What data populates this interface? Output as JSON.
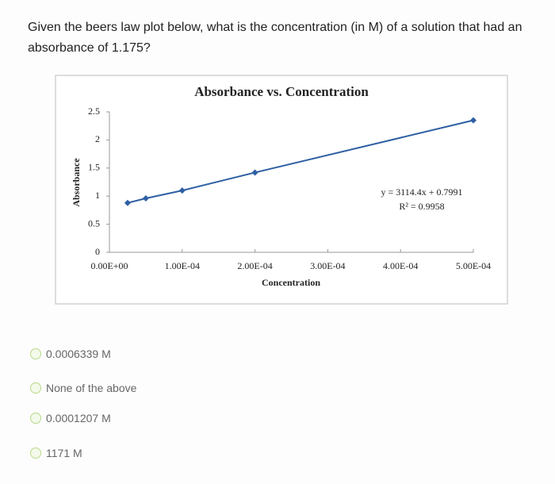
{
  "question": "Given the beers law plot below, what is the concentration (in M) of a solution that had an absorbance of 1.175?",
  "chart_data": {
    "type": "scatter-line",
    "title": "Absorbance vs. Concentration",
    "x_label": "Concentration",
    "y_label": "Absorbance",
    "x": [
      2.5e-05,
      5e-05,
      0.0001,
      0.0002,
      0.0005
    ],
    "values": [
      0.88,
      0.96,
      1.1,
      1.42,
      2.35
    ],
    "color": "#2e5fa3",
    "xlim": [
      0,
      0.0005
    ],
    "ylim": [
      0,
      2.5
    ],
    "xticks": [
      {
        "value": 0,
        "label": "0.00E+00"
      },
      {
        "value": 0.0001,
        "label": "1.00E-04"
      },
      {
        "value": 0.0002,
        "label": "2.00E-04"
      },
      {
        "value": 0.0003,
        "label": "3.00E-04"
      },
      {
        "value": 0.0004,
        "label": "4.00E-04"
      },
      {
        "value": 0.0005,
        "label": "5.00E-04"
      }
    ],
    "yticks": [
      0,
      0.5,
      1,
      1.5,
      2,
      2.5
    ],
    "annotations": [
      "y = 3114.4x + 0.7991",
      "R² = 0.9958"
    ]
  },
  "options": [
    "0.0006339 M",
    "None of the above",
    "0.0001207 M",
    "1171 M"
  ]
}
